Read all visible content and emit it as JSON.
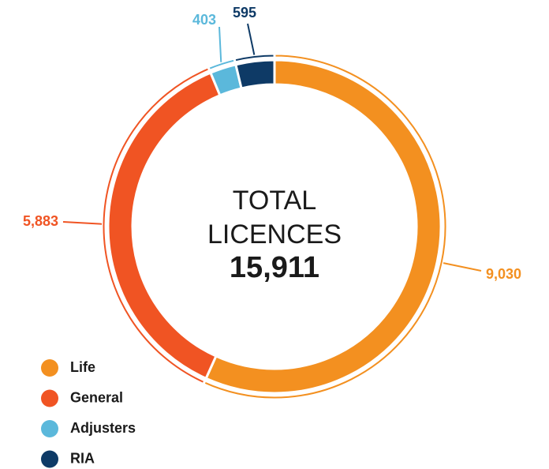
{
  "chart_data": {
    "type": "pie",
    "categories": [
      "Life",
      "General",
      "Adjusters",
      "RIA"
    ],
    "values": [
      9030,
      5883,
      403,
      595
    ],
    "value_labels": [
      "9,030",
      "5,883",
      "403",
      "595"
    ],
    "colors": [
      "#f39020",
      "#f05423",
      "#5bb8db",
      "#0e3a66"
    ],
    "center_lines": [
      "TOTAL",
      "LICENCES"
    ],
    "total": {
      "value": 15911,
      "label": "15,911"
    },
    "legend": "bottom-left"
  }
}
